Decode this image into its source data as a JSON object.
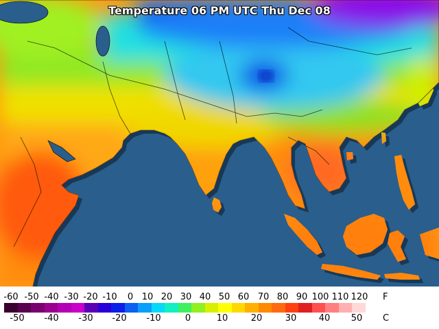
{
  "title": "Temperature 06 PM UTC Thu Dec 08",
  "legend": {
    "fahrenheit_unit": "F",
    "celsius_unit": "C",
    "fahrenheit_ticks": [
      "-60",
      "-50",
      "-40",
      "-30",
      "-20",
      "-10",
      "0",
      "10",
      "20",
      "30",
      "40",
      "50",
      "60",
      "70",
      "80",
      "90",
      "100",
      "110",
      "120"
    ],
    "celsius_ticks": [
      "-50",
      "-40",
      "-30",
      "-20",
      "-10",
      "0",
      "10",
      "20",
      "30",
      "40",
      "50"
    ],
    "colors": [
      "#3a0030",
      "#5a0050",
      "#7a0070",
      "#9a0090",
      "#b400b4",
      "#c800c8",
      "#5a00b4",
      "#2a00d8",
      "#0a20e8",
      "#0a60f0",
      "#08a0f8",
      "#08d8f8",
      "#10f0c0",
      "#40f060",
      "#90f020",
      "#d8f000",
      "#ffff00",
      "#ffd800",
      "#ffb000",
      "#ff8a00",
      "#ff6a10",
      "#ff4010",
      "#e02020",
      "#ff5050",
      "#ff8080",
      "#ffb0b0",
      "#ffd8d8",
      "#ffffff"
    ]
  }
}
